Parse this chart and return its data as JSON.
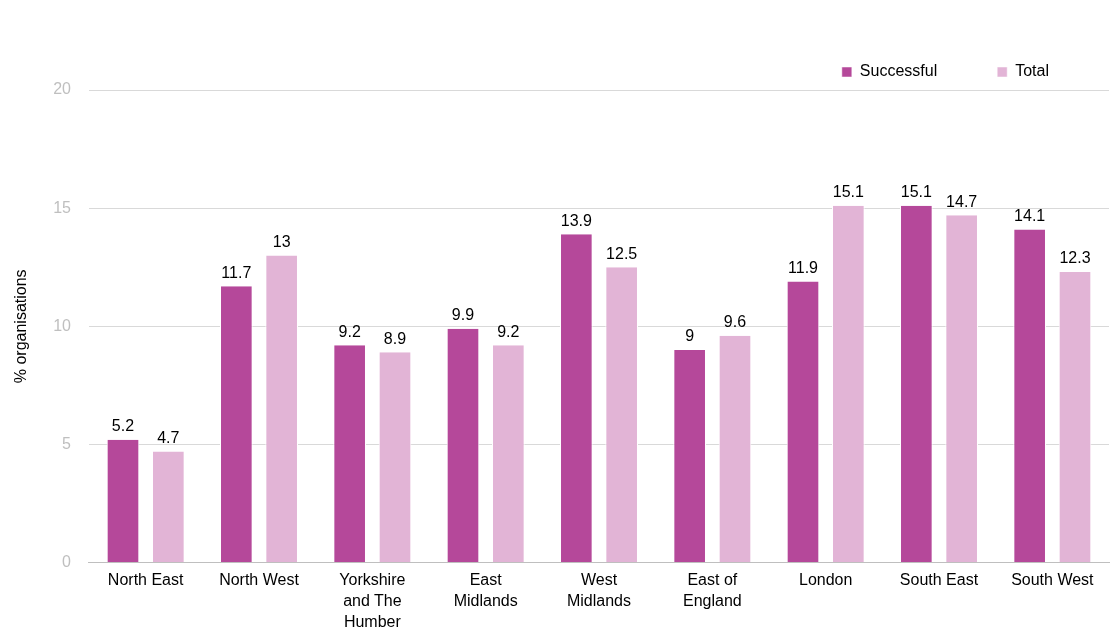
{
  "chart_data": {
    "type": "bar",
    "ylabel": "% organisations",
    "categories": [
      "North East",
      "North West",
      "Yorkshire and The Humber",
      "East Midlands",
      "West Midlands",
      "East of England",
      "London",
      "South East",
      "South West"
    ],
    "series": [
      {
        "name": "Successful",
        "color": "#b5489a",
        "values": [
          5.2,
          11.7,
          9.2,
          9.9,
          13.9,
          9,
          11.9,
          15.1,
          14.1
        ]
      },
      {
        "name": "Total",
        "color": "#e2b4d6",
        "values": [
          4.7,
          13,
          8.9,
          9.2,
          12.5,
          9.6,
          15.1,
          14.7,
          12.3
        ]
      }
    ],
    "ylim": [
      0,
      20
    ],
    "yticks": [
      0,
      5,
      10,
      15,
      20
    ],
    "grid": "y",
    "legend": "top right",
    "data_labels": true
  }
}
